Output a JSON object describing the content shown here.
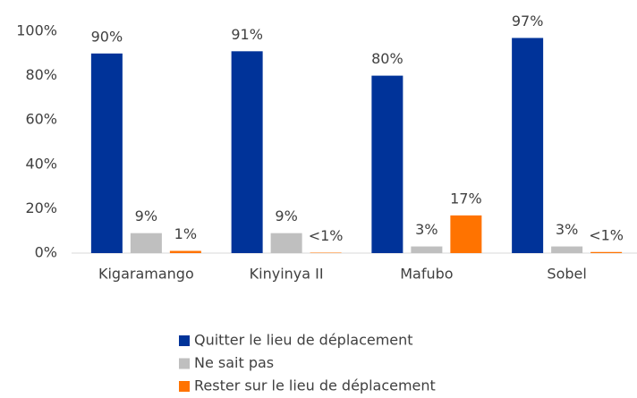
{
  "chart_data": {
    "type": "bar",
    "categories": [
      "Kigaramango",
      "Kinyinya II",
      "Mafubo",
      "Sobel"
    ],
    "series": [
      {
        "name": "Quitter le lieu de déplacement",
        "color": "#003399",
        "values": [
          90,
          91,
          80,
          97
        ],
        "value_labels": [
          "90%",
          "91%",
          "80%",
          "97%"
        ]
      },
      {
        "name": "Ne sait pas",
        "color": "#bfbfbf",
        "values": [
          9,
          9,
          3,
          3
        ],
        "value_labels": [
          "9%",
          "9%",
          "3%",
          "3%"
        ]
      },
      {
        "name": "Rester sur le lieu de déplacement",
        "color": "#ff7300",
        "values": [
          1,
          0.2,
          17,
          0.5
        ],
        "value_labels": [
          "1%",
          "<1%",
          "17%",
          "<1%"
        ]
      }
    ],
    "ylim": [
      0,
      100
    ],
    "yticks": [
      {
        "value": 0,
        "label": "0%"
      },
      {
        "value": 20,
        "label": "20%"
      },
      {
        "value": 40,
        "label": "40%"
      },
      {
        "value": 60,
        "label": "60%"
      },
      {
        "value": 80,
        "label": "80%"
      },
      {
        "value": 100,
        "label": "100%"
      }
    ],
    "legend": "bottom"
  }
}
